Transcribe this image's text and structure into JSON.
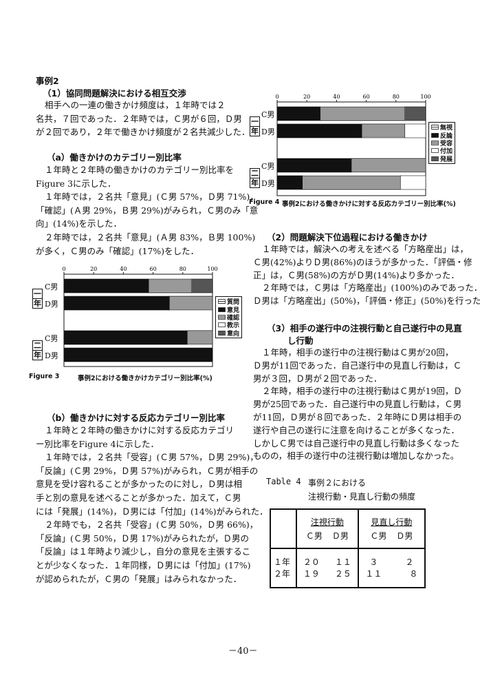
{
  "left": {
    "case_title": "事例2",
    "h1": "（1）協同問題解決における相互交渉",
    "p1": [
      [
        "相手への一連の働きかけ頻度は，１年時では２",
        "名共，７回であった．２年時では，Ｃ男が６回，Ｄ男",
        "が２回であり，２年で働きかけ頻度が２名共減少した．"
      ]
    ],
    "ha": "（a）働きかけのカテゴリー別比率",
    "pa": [
      [
        "１年時と２年時の働きかけのカテゴリー別比率を",
        "Figure 3に示した．"
      ],
      [
        "１年時では，２名共「意見」(Ｃ男 57%，Ｄ男 71%)，",
        "「確認」(Ａ男 29%，Ｂ男 29%)がみられ，Ｃ男のみ「意",
        "向」(14%)を示した．"
      ],
      [
        "２年時では，２名共「意見」(Ａ男 83%，Ｂ男 100%)",
        "が多く，Ｃ男のみ「確認」(17%)をした．"
      ]
    ],
    "hb": "（b）働きかけに対する反応カテゴリー別比率",
    "pb": [
      [
        "１年時と２年時の働きかけに対する反応カテゴリ",
        "ー別比率をFigure 4に示した．"
      ],
      [
        "１年時では，２名共「受容」(Ｃ男 57%，Ｄ男 29%)，",
        "「反論」(Ｃ男 29%，Ｄ男 57%)がみられ，Ｃ男が相手の",
        "意見を受け容れることが多かったのに対し，Ｄ男は相",
        "手と別の意見を述べることが多かった．加えて，Ｃ男",
        "には「発展」(14%)，Ｄ男には「付加」(14%)がみられた．"
      ],
      [
        "２年時でも，２名共「受容」(Ｃ男 50%，Ｄ男 66%)，",
        "「反論」(Ｃ男 50%，Ｄ男 17%)がみられたが，Ｄ男の",
        "「反論」は１年時より減少し，自分の意見を主張するこ",
        "とが少なくなった．１年同様，Ｄ男には「付加」(17%)",
        "が認められたが，Ｃ男の「発展」はみられなかった．"
      ]
    ]
  },
  "right": {
    "h2": "（2）問題解決下位過程における働きかけ",
    "p2": [
      [
        "１年時では，解決への考えを述べる「方略産出」は，",
        "Ｃ男(42%)よりＤ男(86%)のほうが多かった．「評価・修",
        "正」は，Ｃ男(58%)の方がＤ男(14%)より多かった．"
      ],
      [
        "２年時では，Ｃ男は「方略産出」(100%)のみであった．",
        "Ｄ男は「方略産出」(50%)，「評価・修正」(50%)を行った．"
      ]
    ],
    "h3_line1": "（3）相手の遂行中の注視行動と自己遂行中の見直",
    "h3_line2": "し行動",
    "p3": [
      [
        "１年時，相手の遂行中の注視行動はＣ男が20回，",
        "Ｄ男が11回であった．自己遂行中の見直し行動は，Ｃ",
        "男が３回，Ｄ男が２回であった．"
      ],
      [
        "２年時，相手の遂行中の注視行動はＣ男が19回，Ｄ",
        "男が25回であった．自己遂行中の見直し行動は，Ｃ男",
        "が11回，Ｄ男が８回であった．２年時にＤ男は相手の",
        "遂行や自己の遂行に注意を向けることが多くなった．",
        "しかしＣ男では自己遂行中の見直し行動は多くなった",
        "ものの，相手の遂行中の注視行動は増加しなかった。"
      ]
    ]
  },
  "table4": {
    "label": "Table 4",
    "title_line1": "事例２における",
    "title_line2": "注視行動・見直し行動の頻度",
    "groups": [
      "注視行動",
      "見直し行動"
    ],
    "subheaders": [
      "Ｃ男",
      "Ｄ男",
      "Ｃ男",
      "Ｄ男"
    ],
    "rows": [
      {
        "label": "１年",
        "values": [
          "２０",
          "１１",
          "３",
          "２"
        ]
      },
      {
        "label": "２年",
        "values": [
          "１９",
          "２５",
          "１１",
          "８"
        ]
      }
    ]
  },
  "chart_data": [
    {
      "type": "bar",
      "orientation": "horizontal-stacked",
      "caption_label": "Figure 3",
      "title": "事例2における働きかけカテゴリー別比率(%)",
      "groups": [
        "一年",
        "二年"
      ],
      "categories": [
        "C男",
        "D男",
        "C男",
        "D男"
      ],
      "xlim": [
        0,
        100
      ],
      "xticks": [
        "0",
        "20",
        "40",
        "60",
        "80",
        "100"
      ],
      "legend_position": "right",
      "series": [
        {
          "name": "質問",
          "values": [
            0,
            0,
            0,
            0
          ]
        },
        {
          "name": "意見",
          "values": [
            57,
            71,
            83,
            100
          ]
        },
        {
          "name": "確認",
          "values": [
            29,
            29,
            17,
            0
          ]
        },
        {
          "name": "教示",
          "values": [
            0,
            0,
            0,
            0
          ]
        },
        {
          "name": "意向",
          "values": [
            14,
            0,
            0,
            0
          ]
        }
      ]
    },
    {
      "type": "bar",
      "orientation": "horizontal-stacked",
      "caption_label": "Figure 4",
      "title": "事例2における働きかけに対する反応カテゴリー別比率(%)",
      "groups": [
        "一年",
        "二年"
      ],
      "categories": [
        "C男",
        "D男",
        "C男",
        "D男"
      ],
      "xlim": [
        0,
        100
      ],
      "xticks": [
        "0",
        "20",
        "40",
        "60",
        "80",
        "100"
      ],
      "legend_position": "right",
      "series": [
        {
          "name": "無視",
          "values": [
            0,
            0,
            0,
            0
          ]
        },
        {
          "name": "反論",
          "values": [
            29,
            57,
            50,
            17
          ]
        },
        {
          "name": "受容",
          "values": [
            57,
            29,
            50,
            66
          ]
        },
        {
          "name": "付加",
          "values": [
            0,
            14,
            0,
            17
          ]
        },
        {
          "name": "発展",
          "values": [
            14,
            0,
            0,
            0
          ]
        }
      ]
    }
  ],
  "page_number": "－40－"
}
